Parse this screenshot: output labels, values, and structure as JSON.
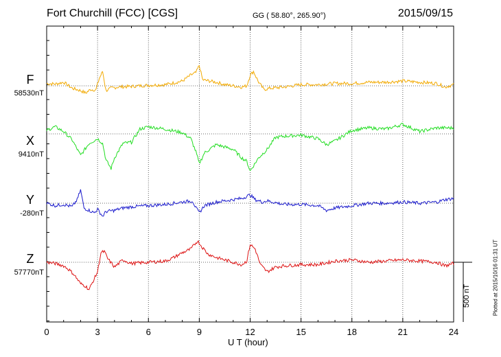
{
  "chart_data": {
    "type": "line",
    "title": "Fort Churchill (FCC)  [CGS]",
    "coords": "GG ( 58.80°, 265.90°)",
    "date": "2015/09/15",
    "xlabel": "U T (hour)",
    "xlim": [
      0,
      24
    ],
    "x_ticks": [
      "0",
      "3",
      "6",
      "9",
      "12",
      "15",
      "18",
      "21",
      "24"
    ],
    "scale_label": "500 nT",
    "scale_nT": 500,
    "plotted_note": "Plotted at 2015/10/16 01:31 UT",
    "series": [
      {
        "name": "F",
        "baseline_label": "58530nT",
        "color": "#f2a900",
        "x": [
          0,
          0.5,
          1,
          1.5,
          2,
          2.3,
          2.6,
          2.9,
          3.1,
          3.3,
          3.5,
          3.8,
          4.2,
          5,
          6,
          7,
          8,
          8.5,
          8.8,
          9,
          9.2,
          9.6,
          10,
          10.5,
          11,
          11.5,
          11.8,
          12,
          12.2,
          12.5,
          12.8,
          13.2,
          14,
          15,
          16,
          17,
          18,
          19,
          20,
          21,
          22,
          23,
          23.5,
          24
        ],
        "values": [
          20,
          15,
          30,
          -20,
          -40,
          -60,
          -30,
          -35,
          60,
          120,
          -40,
          -20,
          -10,
          -5,
          5,
          10,
          40,
          90,
          110,
          170,
          50,
          40,
          30,
          10,
          0,
          -10,
          0,
          90,
          120,
          30,
          -30,
          -20,
          -10,
          10,
          10,
          20,
          20,
          30,
          30,
          40,
          30,
          20,
          -10,
          10
        ]
      },
      {
        "name": "X",
        "baseline_label": "9410nT",
        "color": "#22dd22",
        "x": [
          0,
          0.5,
          1,
          1.5,
          2,
          2.5,
          3,
          3.3,
          3.5,
          3.8,
          4,
          4.5,
          5,
          5.5,
          6,
          7,
          8,
          8.5,
          8.8,
          9,
          9.3,
          10,
          11,
          11.5,
          11.8,
          12,
          12.5,
          13,
          13.5,
          14,
          15,
          16,
          16.5,
          17,
          18,
          19,
          20,
          21,
          22,
          23,
          24
        ],
        "values": [
          30,
          60,
          20,
          -50,
          -180,
          -80,
          -40,
          -80,
          -220,
          -290,
          -200,
          -80,
          -70,
          40,
          60,
          40,
          10,
          -40,
          -150,
          -250,
          -160,
          -90,
          -130,
          -200,
          -230,
          -310,
          -200,
          -130,
          -30,
          -20,
          -10,
          -40,
          -90,
          -60,
          30,
          50,
          40,
          80,
          20,
          50,
          50
        ]
      },
      {
        "name": "Y",
        "baseline_label": "-280nT",
        "color": "#1a1acc",
        "x": [
          0,
          0.5,
          1,
          1.5,
          1.8,
          2,
          2.2,
          2.5,
          2.8,
          3,
          3.3,
          3.5,
          4,
          4.5,
          5,
          6,
          7,
          8,
          8.6,
          8.8,
          9,
          9.3,
          10,
          11,
          11.5,
          12,
          12.3,
          12.7,
          13,
          14,
          15,
          16,
          16.5,
          17,
          18,
          19,
          20,
          21,
          22,
          23,
          23.5,
          24
        ],
        "values": [
          0,
          -20,
          -10,
          -30,
          30,
          110,
          -40,
          -60,
          -80,
          -50,
          -110,
          -70,
          -60,
          -40,
          -30,
          -20,
          -10,
          10,
          20,
          -40,
          -80,
          -20,
          10,
          30,
          40,
          70,
          30,
          10,
          20,
          -10,
          -10,
          -20,
          -60,
          -40,
          -20,
          0,
          0,
          10,
          0,
          10,
          30,
          40
        ]
      },
      {
        "name": "Z",
        "baseline_label": "57770nT",
        "color": "#dd1111",
        "x": [
          0,
          0.5,
          1,
          1.3,
          1.6,
          2,
          2.3,
          2.5,
          2.8,
          3,
          3.2,
          3.4,
          3.6,
          4,
          4.5,
          5,
          6,
          7,
          7.5,
          8,
          8.5,
          8.9,
          9.1,
          9.5,
          10,
          10.5,
          11,
          11.5,
          11.8,
          12,
          12.3,
          12.6,
          13,
          13.5,
          14,
          15,
          16,
          17,
          18,
          19,
          20,
          21,
          22,
          23,
          23.5,
          24
        ],
        "values": [
          0,
          -10,
          -30,
          -60,
          -100,
          -180,
          -200,
          -230,
          -140,
          -80,
          80,
          90,
          30,
          -40,
          20,
          -10,
          0,
          10,
          40,
          80,
          110,
          180,
          140,
          70,
          40,
          20,
          0,
          -20,
          10,
          150,
          110,
          -20,
          -80,
          -40,
          -30,
          -20,
          -20,
          10,
          20,
          0,
          10,
          20,
          10,
          0,
          -30,
          -10
        ]
      }
    ]
  }
}
